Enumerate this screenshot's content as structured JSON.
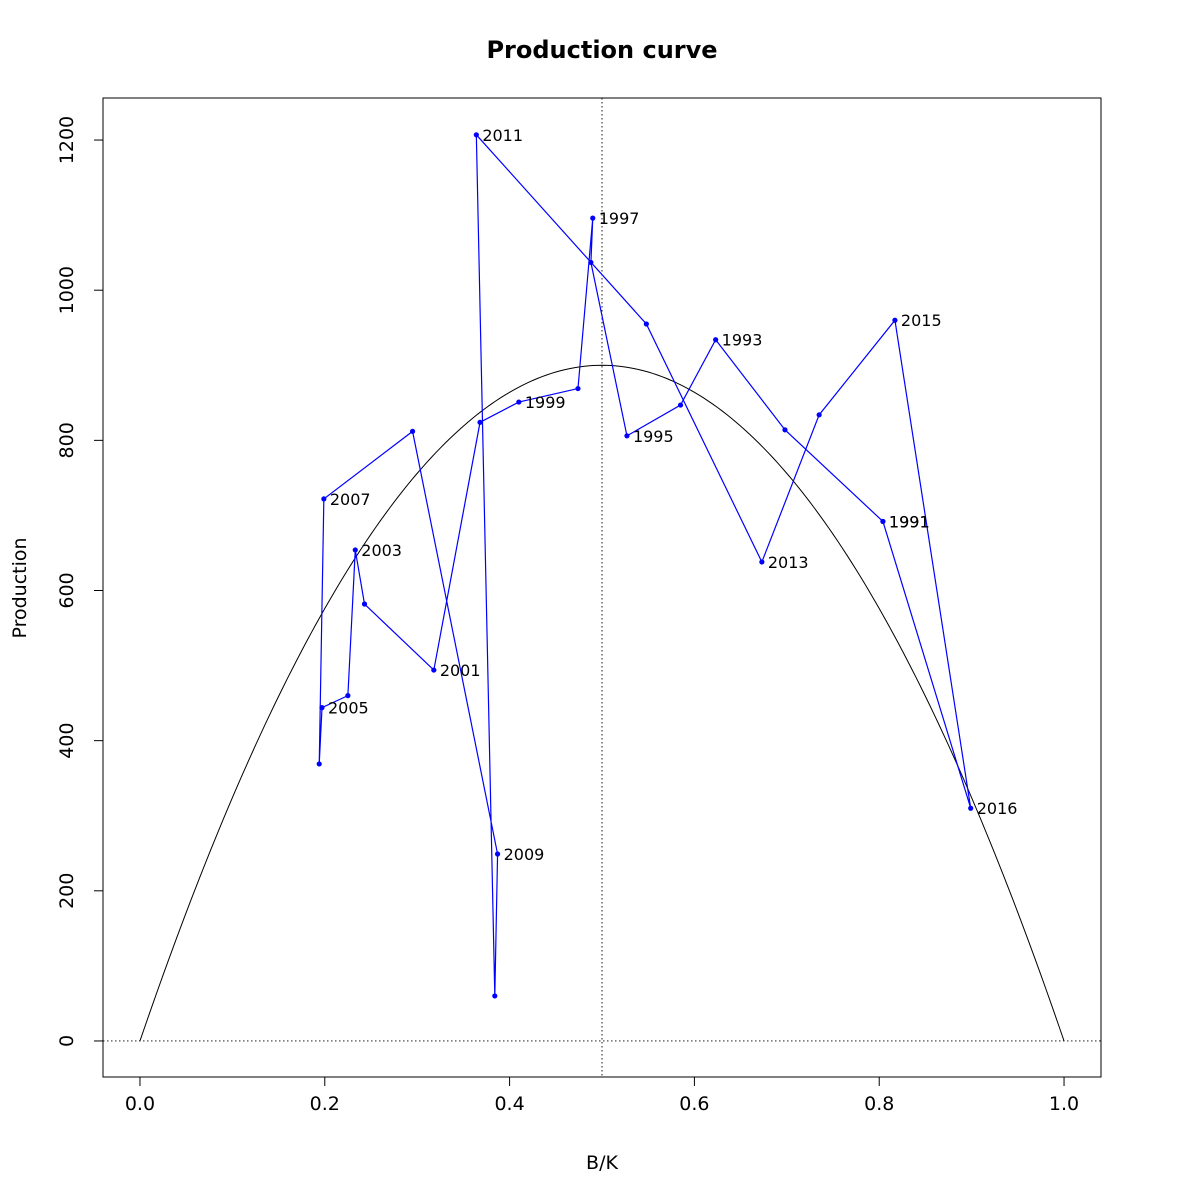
{
  "chart_data": {
    "type": "line",
    "title": "Production curve",
    "xlabel": "B/K",
    "ylabel": "Production",
    "xlim": [
      -0.04,
      1.04
    ],
    "ylim": [
      -48,
      1256
    ],
    "x_ticks": [
      "0.0",
      "0.2",
      "0.4",
      "0.6",
      "0.8",
      "1.0"
    ],
    "y_ticks": [
      "0",
      "200",
      "400",
      "600",
      "800",
      "1000",
      "1200"
    ],
    "colors": {
      "series": "#0000ff",
      "curve": "#000000",
      "reference": "#000000"
    },
    "reference_lines": {
      "vertical_x": 0.5,
      "horizontal_y": 0,
      "style": "dotted"
    },
    "curve": {
      "name": "",
      "formula": "y = 3600 * x * (1 - x)",
      "x_range": [
        0,
        1
      ]
    },
    "series": [
      {
        "name": "",
        "points": [
          {
            "x": 0.804,
            "y": 692,
            "label": "1991"
          },
          {
            "x": 0.698,
            "y": 814,
            "label": ""
          },
          {
            "x": 0.623,
            "y": 934,
            "label": "1993"
          },
          {
            "x": 0.585,
            "y": 847,
            "label": ""
          },
          {
            "x": 0.527,
            "y": 806,
            "label": "1995"
          },
          {
            "x": 0.488,
            "y": 1037,
            "label": ""
          },
          {
            "x": 0.49,
            "y": 1096,
            "label": "1997"
          },
          {
            "x": 0.474,
            "y": 869,
            "label": ""
          },
          {
            "x": 0.41,
            "y": 851,
            "label": "1999"
          },
          {
            "x": 0.368,
            "y": 824,
            "label": ""
          },
          {
            "x": 0.318,
            "y": 494,
            "label": "2001"
          },
          {
            "x": 0.243,
            "y": 582,
            "label": ""
          },
          {
            "x": 0.233,
            "y": 654,
            "label": "2003"
          },
          {
            "x": 0.225,
            "y": 460,
            "label": ""
          },
          {
            "x": 0.197,
            "y": 444,
            "label": "2005"
          },
          {
            "x": 0.194,
            "y": 369,
            "label": ""
          },
          {
            "x": 0.199,
            "y": 722,
            "label": "2007"
          },
          {
            "x": 0.295,
            "y": 812,
            "label": ""
          },
          {
            "x": 0.387,
            "y": 249,
            "label": "2009"
          },
          {
            "x": 0.384,
            "y": 60,
            "label": ""
          },
          {
            "x": 0.364,
            "y": 1207,
            "label": "2011"
          },
          {
            "x": 0.548,
            "y": 955,
            "label": ""
          },
          {
            "x": 0.673,
            "y": 638,
            "label": "2013"
          },
          {
            "x": 0.735,
            "y": 834,
            "label": ""
          },
          {
            "x": 0.817,
            "y": 960,
            "label": "2015"
          },
          {
            "x": 0.899,
            "y": 310,
            "label": "2016"
          },
          {
            "x": 0.804,
            "y": 692,
            "label": "1991"
          }
        ]
      }
    ]
  }
}
